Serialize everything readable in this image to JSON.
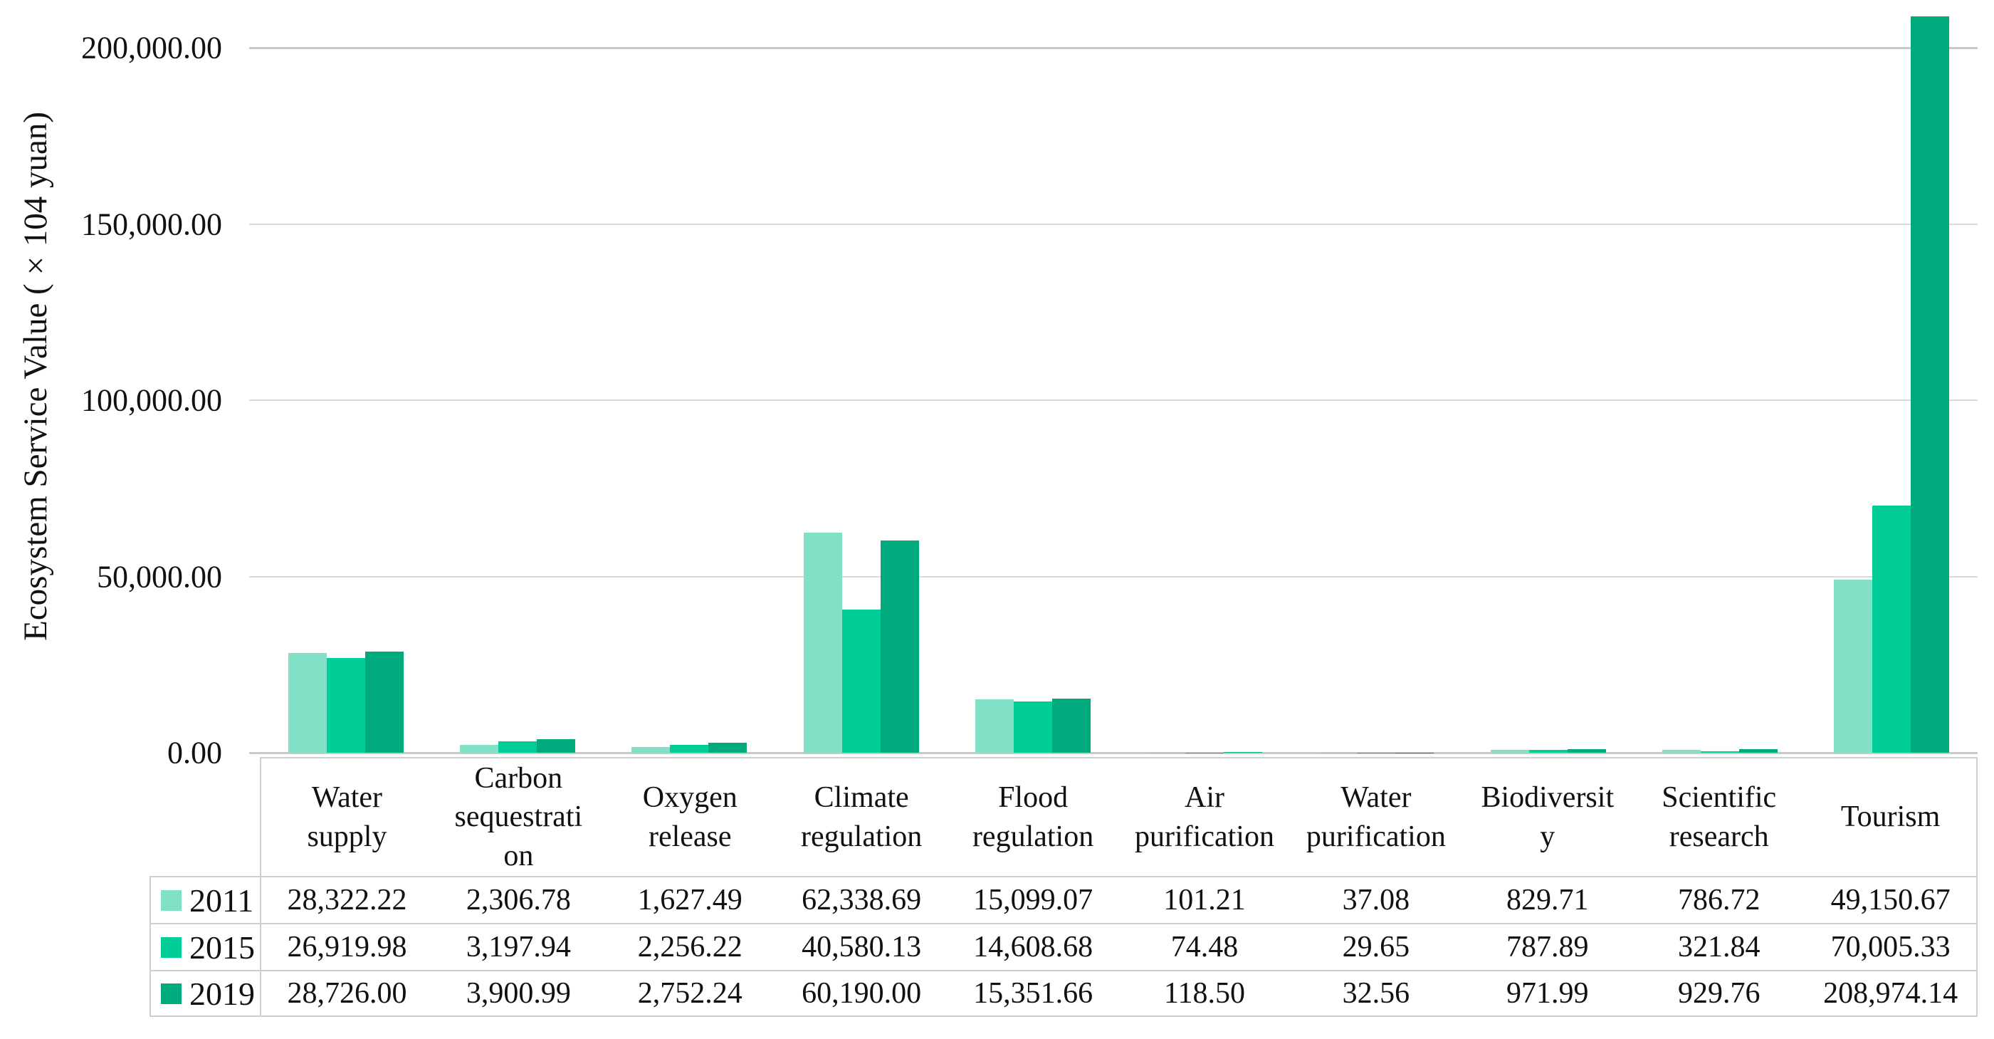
{
  "chart_data": {
    "type": "bar",
    "title": "",
    "xlabel": "",
    "ylabel": "Ecosystem Service Value (×104 yuan)",
    "ylim": [
      0,
      200000
    ],
    "grid": true,
    "legend_position": "table-left",
    "yticks": [
      {
        "label": "200,000.00",
        "value": 200000
      },
      {
        "label": "150,000.00",
        "value": 150000
      },
      {
        "label": "100,000.00",
        "value": 100000
      },
      {
        "label": "50,000.00",
        "value": 50000
      },
      {
        "label": "0.00",
        "value": 0
      }
    ],
    "categories": [
      "Water\nsupply",
      "Carbon\nsequestrati\non",
      "Oxygen\nrelease",
      "Climate\nregulation",
      "Flood\nregulation",
      "Air\npurification",
      "Water\npurification",
      "Biodiversit\ny",
      "Scientific\nresearch",
      "Tourism"
    ],
    "series": [
      {
        "name": "2011",
        "color": "#82e0c6",
        "values": [
          28322.22,
          2306.78,
          1627.49,
          62338.69,
          15099.07,
          101.21,
          37.08,
          829.71,
          786.72,
          49150.67
        ],
        "formatted": [
          "28,322.22",
          "2,306.78",
          "1,627.49",
          "62,338.69",
          "15,099.07",
          "101.21",
          "37.08",
          "829.71",
          "786.72",
          "49,150.67"
        ]
      },
      {
        "name": "2015",
        "color": "#01cd99",
        "values": [
          26919.98,
          3197.94,
          2256.22,
          40580.13,
          14608.68,
          74.48,
          29.65,
          787.89,
          321.84,
          70005.33
        ],
        "formatted": [
          "26,919.98",
          "3,197.94",
          "2,256.22",
          "40,580.13",
          "14,608.68",
          "74.48",
          "29.65",
          "787.89",
          "321.84",
          "70,005.33"
        ]
      },
      {
        "name": "2019",
        "color": "#00aa7d",
        "values": [
          28726.0,
          3900.99,
          2752.24,
          60190.0,
          15351.66,
          118.5,
          32.56,
          971.99,
          929.76,
          208974.14
        ],
        "formatted": [
          "28,726.00",
          "3,900.99",
          "2,752.24",
          "60,190.00",
          "15,351.66",
          "118.50",
          "32.56",
          "971.99",
          "929.76",
          "208,974.14"
        ]
      }
    ]
  }
}
